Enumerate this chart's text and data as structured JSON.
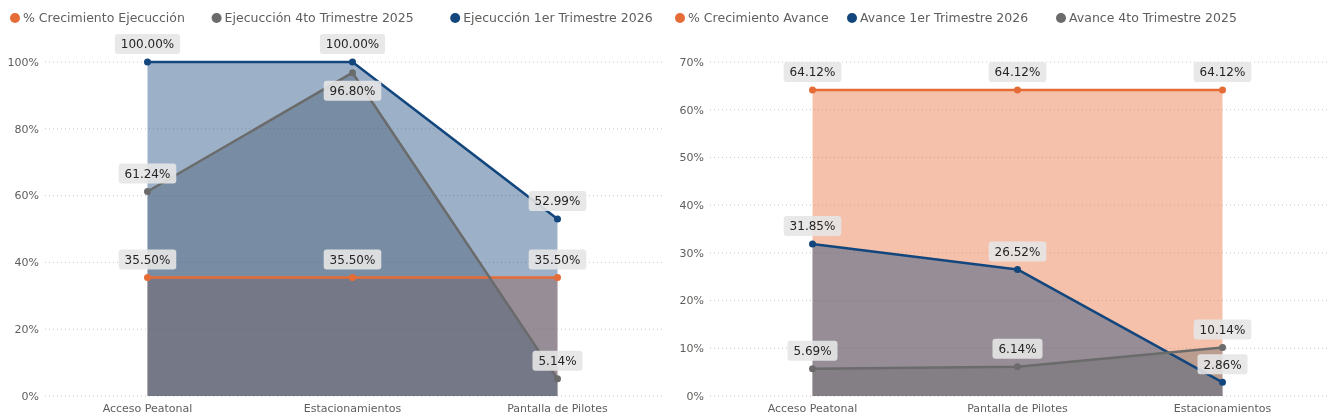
{
  "chart_data": [
    {
      "type": "area",
      "categories": [
        "Acceso Peatonal",
        "Estacionamientos",
        "Pantalla de Pilotes"
      ],
      "ylim": [
        0,
        100
      ],
      "yticks": [
        {
          "value": 0,
          "label": "0%"
        },
        {
          "value": 20,
          "label": "20%"
        },
        {
          "value": 40,
          "label": "40%"
        },
        {
          "value": 60,
          "label": "60%"
        },
        {
          "value": 80,
          "label": "80%"
        },
        {
          "value": 100,
          "label": "100%"
        }
      ],
      "grid": "y",
      "legend": "top left",
      "marker": "circle",
      "series": [
        {
          "name": "% Crecimiento Ejecucción",
          "color": "#e66c37",
          "values": [
            35.5,
            35.5,
            35.5
          ],
          "value_labels": [
            "35.50%",
            "35.50%",
            "35.50%"
          ]
        },
        {
          "name": "Ejecucción 4to Trimestre 2025",
          "color": "#6b6b6b",
          "values": [
            61.24,
            96.8,
            5.14
          ],
          "value_labels": [
            "61.24%",
            "96.80%",
            "5.14%"
          ]
        },
        {
          "name": "Ejecucción 1er Trimestre 2026",
          "color": "#12467d",
          "values": [
            100,
            100,
            52.99
          ],
          "value_labels": [
            "100.00%",
            "100.00%",
            "52.99%"
          ]
        }
      ]
    },
    {
      "type": "area",
      "categories": [
        "Acceso Peatonal",
        "Pantalla de Pilotes",
        "Estacionamientos"
      ],
      "ylim": [
        0,
        70
      ],
      "yticks": [
        {
          "value": 0,
          "label": "0%"
        },
        {
          "value": 10,
          "label": "10%"
        },
        {
          "value": 20,
          "label": "20%"
        },
        {
          "value": 30,
          "label": "30%"
        },
        {
          "value": 40,
          "label": "40%"
        },
        {
          "value": 50,
          "label": "50%"
        },
        {
          "value": 60,
          "label": "60%"
        },
        {
          "value": 70,
          "label": "70%"
        }
      ],
      "grid": "y",
      "legend": "top left",
      "marker": "circle",
      "series": [
        {
          "name": "% Crecimiento Avance",
          "color": "#e66c37",
          "values": [
            64.12,
            64.12,
            64.12
          ],
          "value_labels": [
            "64.12%",
            "64.12%",
            "64.12%"
          ]
        },
        {
          "name": "Avance 1er Trimestre 2026",
          "color": "#12467d",
          "values": [
            31.85,
            26.52,
            2.86
          ],
          "value_labels": [
            "31.85%",
            "26.52%",
            "2.86%"
          ]
        },
        {
          "name": "Avance 4to Trimestre 2025",
          "color": "#6b6b6b",
          "values": [
            5.69,
            6.14,
            10.14
          ],
          "value_labels": [
            "5.69%",
            "6.14%",
            "10.14%"
          ]
        }
      ]
    }
  ]
}
